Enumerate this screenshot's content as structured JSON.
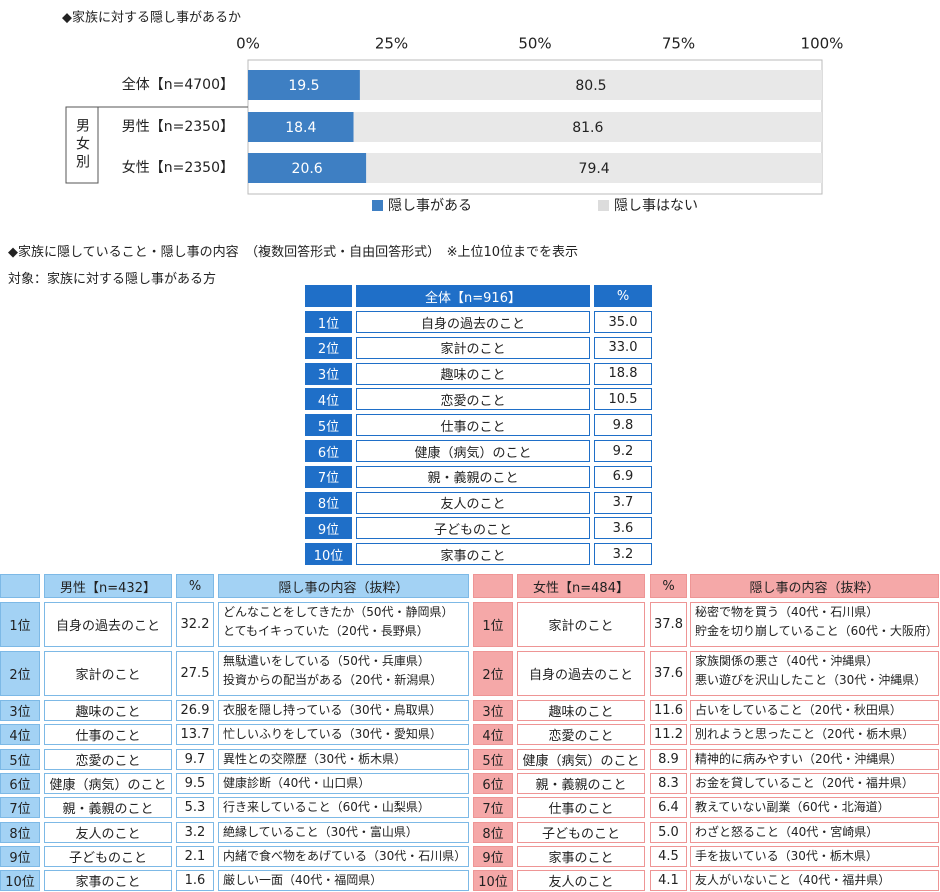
{
  "chart_data": {
    "type": "bar",
    "orientation": "horizontal",
    "stacked": true,
    "title": "◆家族に対する隠し事があるか",
    "categories": [
      "全体【n=4700】",
      "男性【n=2350】",
      "女性【n=2350】"
    ],
    "group_label": "男女別",
    "series": [
      {
        "name": "隠し事がある",
        "color": "#3e7fc3",
        "values": [
          19.5,
          18.4,
          20.6
        ]
      },
      {
        "name": "隠し事はない",
        "color": "#e8e8e8",
        "values": [
          80.5,
          81.6,
          79.4
        ]
      }
    ],
    "xlim": [
      0,
      100
    ],
    "xticks": [
      {
        "value": 0,
        "label": "0%"
      },
      {
        "value": 25,
        "label": "25%"
      },
      {
        "value": 50,
        "label": "50%"
      },
      {
        "value": 75,
        "label": "75%"
      },
      {
        "value": 100,
        "label": "100%"
      }
    ],
    "grid": false,
    "legend": "bottom"
  },
  "section2": {
    "title": "◆家族に隠していること・隠し事の内容　（複数回答形式・自由回答形式）　※上位10位までを表示",
    "target": "対象：家族に対する隠し事がある方"
  },
  "overall_table": {
    "header": [
      "全体【n=916】",
      "%"
    ],
    "rows": [
      [
        "1位",
        "自身の過去のこと",
        "35.0"
      ],
      [
        "2位",
        "家計のこと",
        "33.0"
      ],
      [
        "3位",
        "趣味のこと",
        "18.8"
      ],
      [
        "4位",
        "恋愛のこと",
        "10.5"
      ],
      [
        "5位",
        "仕事のこと",
        "9.8"
      ],
      [
        "6位",
        "健康（病気）のこと",
        "9.2"
      ],
      [
        "7位",
        "親・義親のこと",
        "6.9"
      ],
      [
        "8位",
        "友人のこと",
        "3.7"
      ],
      [
        "9位",
        "子どものこと",
        "3.6"
      ],
      [
        "10位",
        "家事のこと",
        "3.2"
      ]
    ]
  },
  "male_table": {
    "header": [
      "男性【n=432】",
      "%",
      "隠し事の内容（抜粋）"
    ],
    "rows": [
      [
        "1位",
        "自身の過去のこと",
        "32.2",
        [
          "どんなことをしてきたか（50代・静岡県）",
          "とてもイキっていた（20代・長野県）"
        ]
      ],
      [
        "2位",
        "家計のこと",
        "27.5",
        [
          "無駄遣いをしている（50代・兵庫県）",
          "投資からの配当がある（20代・新潟県）"
        ]
      ],
      [
        "3位",
        "趣味のこと",
        "26.9",
        [
          "衣服を隠し持っている（30代・鳥取県）"
        ]
      ],
      [
        "4位",
        "仕事のこと",
        "13.7",
        [
          "忙しいふりをしている（30代・愛知県）"
        ]
      ],
      [
        "5位",
        "恋愛のこと",
        "9.7",
        [
          "異性との交際歴（30代・栃木県）"
        ]
      ],
      [
        "6位",
        "健康（病気）のこと",
        "9.5",
        [
          "健康診断（40代・山口県）"
        ]
      ],
      [
        "7位",
        "親・義親のこと",
        "5.3",
        [
          "行き来していること（60代・山梨県）"
        ]
      ],
      [
        "8位",
        "友人のこと",
        "3.2",
        [
          "絶縁していること（30代・富山県）"
        ]
      ],
      [
        "9位",
        "子どものこと",
        "2.1",
        [
          "内緒で食べ物をあげている（30代・石川県）"
        ]
      ],
      [
        "10位",
        "家事のこと",
        "1.6",
        [
          "厳しい一面（40代・福岡県）"
        ]
      ]
    ]
  },
  "female_table": {
    "header": [
      "女性【n=484】",
      "%",
      "隠し事の内容（抜粋）"
    ],
    "rows": [
      [
        "1位",
        "家計のこと",
        "37.8",
        [
          "秘密で物を買う（40代・石川県）",
          "貯金を切り崩していること（60代・大阪府）"
        ]
      ],
      [
        "2位",
        "自身の過去のこと",
        "37.6",
        [
          "家族関係の悪さ（40代・沖縄県）",
          "悪い遊びを沢山したこと（30代・沖縄県）"
        ]
      ],
      [
        "3位",
        "趣味のこと",
        "11.6",
        [
          "占いをしていること（20代・秋田県）"
        ]
      ],
      [
        "4位",
        "恋愛のこと",
        "11.2",
        [
          "別れようと思ったこと（20代・栃木県）"
        ]
      ],
      [
        "5位",
        "健康（病気）のこと",
        "8.9",
        [
          "精神的に病みやすい（20代・沖縄県）"
        ]
      ],
      [
        "6位",
        "親・義親のこと",
        "8.3",
        [
          "お金を貸していること（20代・福井県）"
        ]
      ],
      [
        "7位",
        "仕事のこと",
        "6.4",
        [
          "教えていない副業（60代・北海道）"
        ]
      ],
      [
        "8位",
        "子どものこと",
        "5.0",
        [
          "わざと怒ること（40代・宮崎県）"
        ]
      ],
      [
        "9位",
        "家事のこと",
        "4.5",
        [
          "手を抜いている（30代・栃木県）"
        ]
      ],
      [
        "10位",
        "友人のこと",
        "4.1",
        [
          "友人がいないこと（40代・福井県）"
        ]
      ]
    ]
  }
}
